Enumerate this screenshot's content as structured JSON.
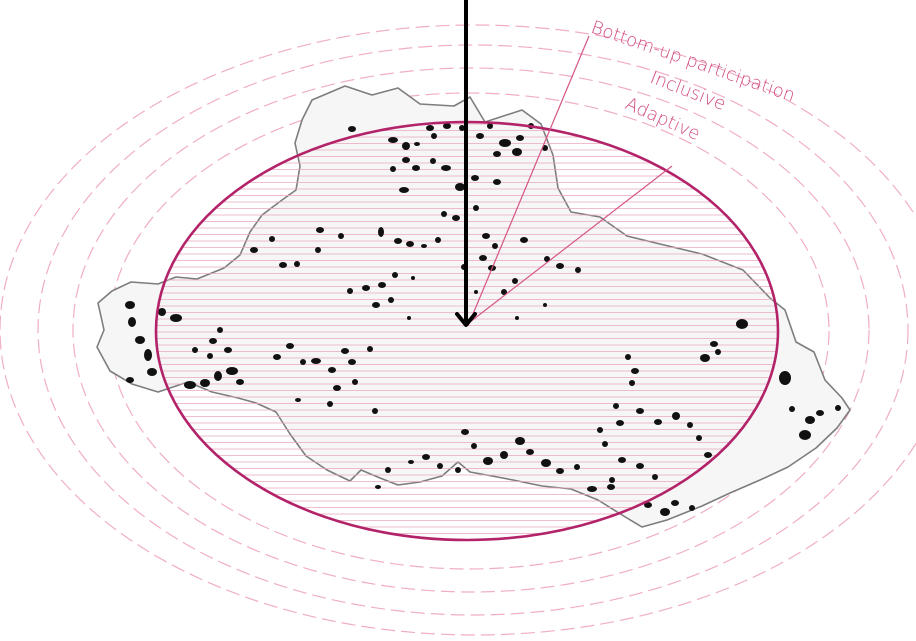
{
  "labels": {
    "participation": "Bottom-up participation",
    "inclusive": "Inclusive",
    "adaptive": "Adaptive"
  },
  "colors": {
    "accent": "#b3236a",
    "label": "#d24a82",
    "ring": "#f0aec4",
    "hatch": "#e9a9be",
    "boundary": "#7d7d7d",
    "specks": "#111111"
  },
  "icons": {
    "pointer": "down-arrow-icon"
  }
}
